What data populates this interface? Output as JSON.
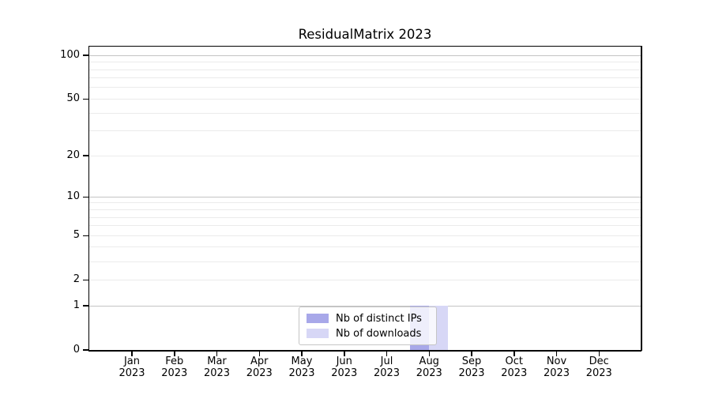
{
  "title": "ResidualMatrix 2023",
  "legend": {
    "position": "bottom-center",
    "items": [
      {
        "label": "Nb of distinct IPs",
        "color": "#a8a8e9"
      },
      {
        "label": "Nb of downloads",
        "color": "#d7d7f6"
      }
    ]
  },
  "x_axis": {
    "months": [
      "Jan",
      "Feb",
      "Mar",
      "Apr",
      "May",
      "Jun",
      "Jul",
      "Aug",
      "Sep",
      "Oct",
      "Nov",
      "Dec"
    ],
    "year": "2023"
  },
  "y_axis": {
    "tick_labels": [
      0,
      1,
      2,
      5,
      10,
      20,
      50,
      100
    ],
    "scale": "log1p",
    "max": 115
  },
  "chart_data": {
    "type": "bar",
    "title": "ResidualMatrix 2023",
    "categories": [
      "Jan 2023",
      "Feb 2023",
      "Mar 2023",
      "Apr 2023",
      "May 2023",
      "Jun 2023",
      "Jul 2023",
      "Aug 2023",
      "Sep 2023",
      "Oct 2023",
      "Nov 2023",
      "Dec 2023"
    ],
    "series": [
      {
        "name": "Nb of distinct IPs",
        "color": "#a8a8e9",
        "values": [
          0,
          0,
          0,
          0,
          0,
          0,
          0,
          1,
          0,
          0,
          0,
          0
        ]
      },
      {
        "name": "Nb of downloads",
        "color": "#d7d7f6",
        "values": [
          0,
          0,
          0,
          0,
          0,
          0,
          0,
          1,
          0,
          0,
          0,
          0
        ]
      }
    ],
    "xlabel": "",
    "ylabel": "",
    "yscale": "log1p",
    "ylim": [
      0,
      115
    ],
    "yticks": [
      0,
      1,
      2,
      5,
      10,
      20,
      50,
      100
    ],
    "major_gridlines": [
      1,
      10,
      100
    ],
    "minor_gridlines": [
      2,
      3,
      4,
      5,
      6,
      7,
      8,
      9,
      20,
      30,
      40,
      50,
      60,
      70,
      80,
      90
    ],
    "grid": true,
    "legend_position": "bottom-center"
  },
  "colors": {
    "major_grid": "#c4c4c4",
    "minor_grid": "#ebebeb",
    "spine": "#000000",
    "legend_border": "#c5c5c5"
  }
}
